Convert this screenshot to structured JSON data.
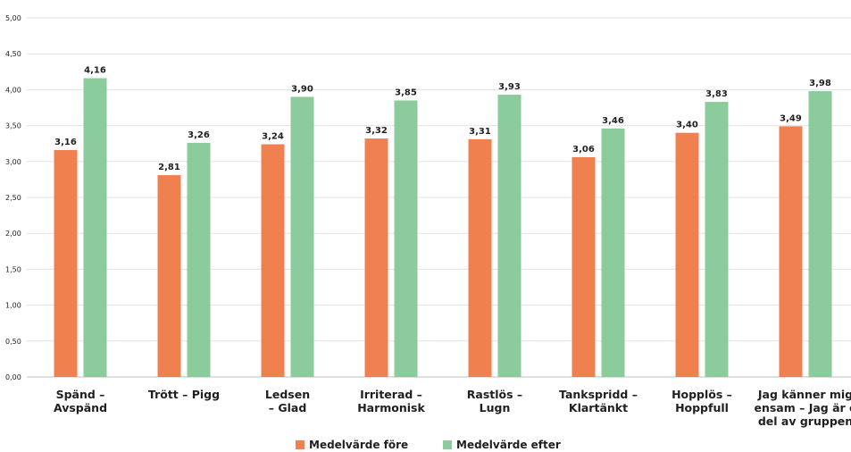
{
  "chart_data": {
    "type": "bar",
    "ylim": [
      0,
      5
    ],
    "y_ticks": [
      "0,00",
      "0,50",
      "1,00",
      "1,50",
      "2,00",
      "2,50",
      "3,00",
      "3,50",
      "4,00",
      "4,50",
      "5,00"
    ],
    "grid": true,
    "legend_position": "bottom-center",
    "categories": [
      [
        "Spänd –",
        "Avspänd"
      ],
      [
        "Trött – Pigg"
      ],
      [
        "Ledsen",
        "– Glad"
      ],
      [
        "Irriterad –",
        "Harmonisk"
      ],
      [
        "Rastlös –",
        "Lugn"
      ],
      [
        "Tankspridd –",
        "Klartänkt"
      ],
      [
        "Hopplös –",
        "Hoppfull"
      ],
      [
        "Jag känner mig",
        "ensam – Jag är e",
        "del av gruppen"
      ]
    ],
    "series": [
      {
        "name": "Medelvärde före",
        "color": "#f0804f",
        "values": [
          3.16,
          2.81,
          3.24,
          3.32,
          3.31,
          3.06,
          3.4,
          3.49
        ],
        "labels": [
          "3,16",
          "2,81",
          "3,24",
          "3,32",
          "3,31",
          "3,06",
          "3,40",
          "3,49"
        ]
      },
      {
        "name": "Medelvärde efter",
        "color": "#8ccb9b",
        "values": [
          4.16,
          3.26,
          3.9,
          3.85,
          3.93,
          3.46,
          3.83,
          3.98
        ],
        "labels": [
          "4,16",
          "3,26",
          "3,90",
          "3,85",
          "3,93",
          "3,46",
          "3,83",
          "3,98"
        ]
      }
    ]
  }
}
